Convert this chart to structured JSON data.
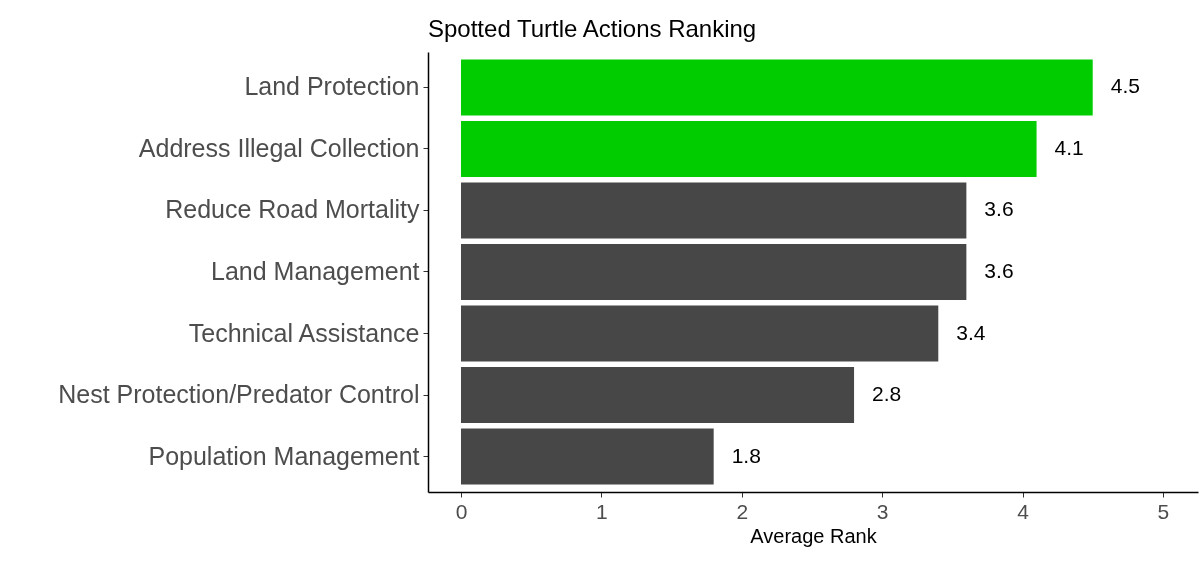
{
  "chart_data": {
    "type": "bar",
    "orientation": "horizontal",
    "title": "Spotted Turtle Actions Ranking",
    "xlabel": "Average Rank",
    "categories": [
      "Land Protection",
      "Address Illegal Collection",
      "Reduce Road Mortality",
      "Land Management",
      "Technical Assistance",
      "Nest Protection/Predator Control",
      "Population Management"
    ],
    "values": [
      4.5,
      4.1,
      3.6,
      3.6,
      3.4,
      2.8,
      1.8
    ],
    "colors": [
      "#00cc00",
      "#00cc00",
      "#474747",
      "#474747",
      "#474747",
      "#474747",
      "#474747"
    ],
    "xlim": [
      -0.235,
      5.25
    ],
    "xticks": [
      0,
      1,
      2,
      3,
      4,
      5
    ],
    "grid": false,
    "legend": false,
    "data_labels": true
  }
}
